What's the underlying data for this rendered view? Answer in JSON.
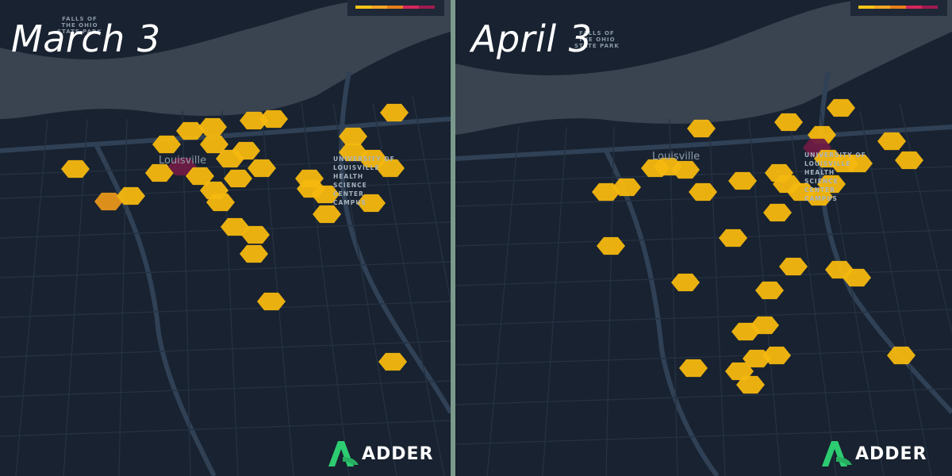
{
  "panels": [
    {
      "id": "march",
      "title": "March 3",
      "falls_label": "FALLS OF\nTHE OHIO\nSTATE PARK",
      "city_label": "Louisville",
      "campus_label": "UNIVERSITY OF\nLOUISVILLE\nHEALTH\nSCIENCE\nCENTER\nCAMPUS",
      "logo_text": "ADDER"
    },
    {
      "id": "april",
      "title": "April 3",
      "falls_label": "FALLS OF\nTHE OHIO\nSTATE PARK",
      "city_label": "Louisville",
      "campus_label": "UNIVERSITY OF\nLOUISVILLE\nHEALTH\nSCIENCE\nCENTER\nCAMPUS",
      "logo_text": "ADDER"
    }
  ],
  "legend": {
    "colors": [
      "#f5c518",
      "#f5a623",
      "#e87f1c",
      "#d4265c",
      "#a01a50"
    ]
  },
  "colors": {
    "background": "#182230",
    "river": "#3b4450",
    "road": "#2e3b4b",
    "hex_low": "#f5b80f",
    "hex_mid": "#e8961a",
    "hex_high": "#6e1b45",
    "logo_green": "#2ecc71"
  }
}
